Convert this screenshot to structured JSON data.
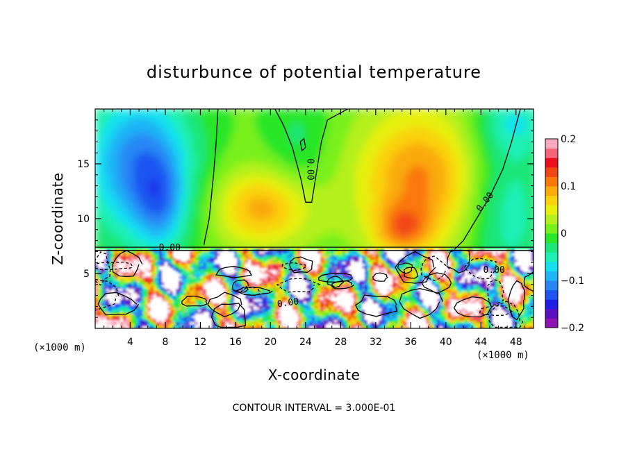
{
  "chart_data": {
    "type": "heatmap",
    "title": "disturbunce of potential temperature",
    "xlabel": "X-coordinate",
    "ylabel": "Z-coordinate",
    "x_unit_left": "(×1000 m)",
    "x_unit_right": "(×1000 m)",
    "xlim": [
      0,
      50
    ],
    "ylim": [
      0,
      20
    ],
    "x_ticks": [
      4,
      8,
      12,
      16,
      20,
      24,
      28,
      32,
      36,
      40,
      44,
      48
    ],
    "x_tick_labels": [
      "4",
      "8",
      "12",
      "16",
      "20",
      "24",
      "28",
      "32",
      "36",
      "40",
      "44",
      "48"
    ],
    "y_ticks": [
      5,
      10,
      15
    ],
    "y_tick_labels": [
      "5",
      "10",
      "15"
    ],
    "colorbar": {
      "range": [
        -0.2,
        0.2
      ],
      "tick_values": [
        0.2,
        0.1,
        0,
        -0.1,
        -0.2
      ],
      "tick_labels": [
        "0.2",
        "0.1",
        "0",
        "−0.1",
        "−0.2"
      ],
      "colors": [
        "#8c12b4",
        "#5a0fc0",
        "#1e1ee6",
        "#1e55f0",
        "#2887f5",
        "#1eb4f5",
        "#14e1f0",
        "#1ef0b4",
        "#1ee678",
        "#28e628",
        "#78f01e",
        "#b4f01e",
        "#e6f00a",
        "#fad20a",
        "#faaa0a",
        "#fa780a",
        "#f04614",
        "#eb0f1e",
        "#f56478",
        "#faaabe"
      ]
    },
    "contour_labels": [
      "0.00",
      "0.00",
      "0.00",
      "0.00",
      "0.00"
    ],
    "annotation": "CONTOUR INTERVAL = 3.000E-01"
  }
}
